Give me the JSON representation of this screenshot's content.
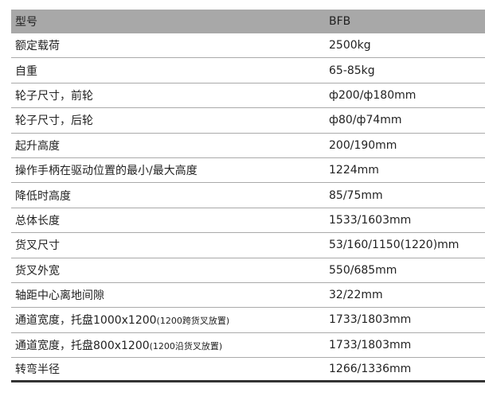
{
  "header": {
    "label": "型号",
    "value": "BFB"
  },
  "rows": [
    {
      "label": "额定载荷",
      "value": "2500kg"
    },
    {
      "label": "自重",
      "value": "65-85kg"
    },
    {
      "label": "轮子尺寸，前轮",
      "value": "ф200/ф180mm"
    },
    {
      "label": "轮子尺寸，后轮",
      "value": "ф80/ф74mm"
    },
    {
      "label": "起升高度",
      "value": "200/190mm"
    },
    {
      "label": "操作手柄在驱动位置的最小/最大高度",
      "value": "1224mm"
    },
    {
      "label": "降低时高度",
      "value": "85/75mm"
    },
    {
      "label": "总体长度",
      "value": "1533/1603mm"
    },
    {
      "label": "货叉尺寸",
      "value": "53/160/1150(1220)mm"
    },
    {
      "label": "货叉外宽",
      "value": "550/685mm"
    },
    {
      "label": "轴距中心离地间隙",
      "value": "32/22mm"
    },
    {
      "label": "通道宽度，托盘1000x1200",
      "note": "(1200跨货叉放置)",
      "value": "1733/1803mm"
    },
    {
      "label": "通道宽度，托盘800x1200",
      "note": "(1200沿货叉放置)",
      "value": "1733/1803mm"
    },
    {
      "label": "转弯半径",
      "value": "1266/1336mm"
    }
  ]
}
